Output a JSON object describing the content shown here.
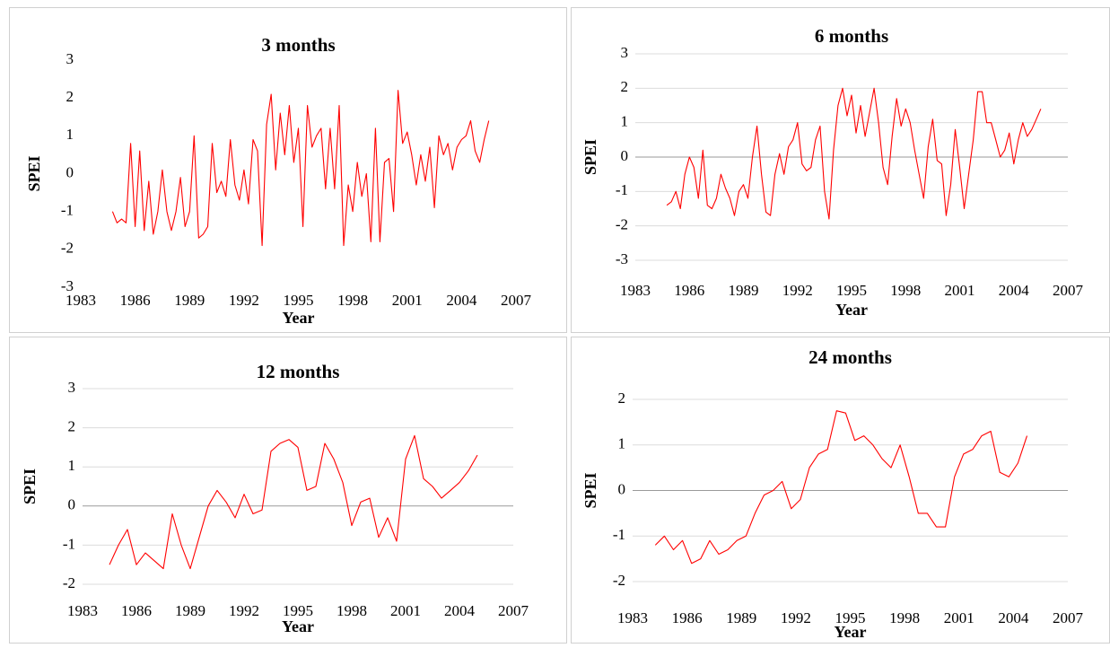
{
  "chart_data": [
    {
      "type": "line",
      "title": "3 months",
      "x_label": "Year",
      "y_label": "SPEI",
      "color": "#ff0000",
      "grid": false,
      "xlim": [
        1983,
        2007
      ],
      "xticks": [
        1983,
        1986,
        1989,
        1992,
        1995,
        1998,
        2001,
        2004,
        2007
      ],
      "ylim": [
        -3,
        3
      ],
      "yticks": [
        -3,
        -2,
        -1,
        0,
        1,
        2,
        3
      ],
      "x": [
        1984.75,
        1985,
        1985.25,
        1985.5,
        1985.75,
        1986,
        1986.25,
        1986.5,
        1986.75,
        1987,
        1987.25,
        1987.5,
        1987.75,
        1988,
        1988.25,
        1988.5,
        1988.75,
        1989,
        1989.25,
        1989.5,
        1989.75,
        1990,
        1990.25,
        1990.5,
        1990.75,
        1991,
        1991.25,
        1991.5,
        1991.75,
        1992,
        1992.25,
        1992.5,
        1992.75,
        1993,
        1993.25,
        1993.5,
        1993.75,
        1994,
        1994.25,
        1994.5,
        1994.75,
        1995,
        1995.25,
        1995.5,
        1995.75,
        1996,
        1996.25,
        1996.5,
        1996.75,
        1997,
        1997.25,
        1997.5,
        1997.75,
        1998,
        1998.25,
        1998.5,
        1998.75,
        1999,
        1999.25,
        1999.5,
        1999.75,
        2000,
        2000.25,
        2000.5,
        2000.75,
        2001,
        2001.25,
        2001.5,
        2001.75,
        2002,
        2002.25,
        2002.5,
        2002.75,
        2003,
        2003.25,
        2003.5,
        2003.75,
        2004,
        2004.25,
        2004.5,
        2004.75,
        2005,
        2005.25,
        2005.5
      ],
      "values": [
        -1.0,
        -1.3,
        -1.2,
        -1.3,
        0.8,
        -1.4,
        0.6,
        -1.5,
        -0.2,
        -1.6,
        -1.0,
        0.1,
        -1.0,
        -1.5,
        -1.0,
        -0.1,
        -1.4,
        -1.0,
        1.0,
        -1.7,
        -1.6,
        -1.4,
        0.8,
        -0.5,
        -0.2,
        -0.6,
        0.9,
        -0.3,
        -0.7,
        0.1,
        -0.8,
        0.9,
        0.6,
        -1.9,
        1.3,
        2.1,
        0.1,
        1.6,
        0.5,
        1.8,
        0.3,
        1.2,
        -1.4,
        1.8,
        0.7,
        1.0,
        1.2,
        -0.4,
        1.2,
        -0.4,
        1.8,
        -1.9,
        -0.3,
        -1.0,
        0.3,
        -0.6,
        0.0,
        -1.8,
        1.2,
        -1.8,
        0.3,
        0.4,
        -1.0,
        2.2,
        0.8,
        1.1,
        0.5,
        -0.3,
        0.5,
        -0.2,
        0.7,
        -0.9,
        1.0,
        0.5,
        0.8,
        0.1,
        0.7,
        0.9,
        1.0,
        1.4,
        0.6,
        0.3,
        0.9,
        1.4
      ]
    },
    {
      "type": "line",
      "title": "6 months",
      "x_label": "Year",
      "y_label": "SPEI",
      "color": "#ff0000",
      "grid": true,
      "xlim": [
        1983,
        2007
      ],
      "xticks": [
        1983,
        1986,
        1989,
        1992,
        1995,
        1998,
        2001,
        2004,
        2007
      ],
      "ylim": [
        -3,
        3
      ],
      "yticks": [
        -3,
        -2,
        -1,
        0,
        1,
        2,
        3
      ],
      "x": [
        1984.75,
        1985,
        1985.25,
        1985.5,
        1985.75,
        1986,
        1986.25,
        1986.5,
        1986.75,
        1987,
        1987.25,
        1987.5,
        1987.75,
        1988,
        1988.25,
        1988.5,
        1988.75,
        1989,
        1989.25,
        1989.5,
        1989.75,
        1990,
        1990.25,
        1990.5,
        1990.75,
        1991,
        1991.25,
        1991.5,
        1991.75,
        1992,
        1992.25,
        1992.5,
        1992.75,
        1993,
        1993.25,
        1993.5,
        1993.75,
        1994,
        1994.25,
        1994.5,
        1994.75,
        1995,
        1995.25,
        1995.5,
        1995.75,
        1996,
        1996.25,
        1996.5,
        1996.75,
        1997,
        1997.25,
        1997.5,
        1997.75,
        1998,
        1998.25,
        1998.5,
        1998.75,
        1999,
        1999.25,
        1999.5,
        1999.75,
        2000,
        2000.25,
        2000.5,
        2000.75,
        2001,
        2001.25,
        2001.5,
        2001.75,
        2002,
        2002.25,
        2002.5,
        2002.75,
        2003,
        2003.25,
        2003.5,
        2003.75,
        2004,
        2004.25,
        2004.5,
        2004.75,
        2005,
        2005.25,
        2005.5
      ],
      "values": [
        -1.4,
        -1.3,
        -1.0,
        -1.5,
        -0.5,
        0.0,
        -0.3,
        -1.2,
        0.2,
        -1.4,
        -1.5,
        -1.2,
        -0.5,
        -0.9,
        -1.2,
        -1.7,
        -1.0,
        -0.8,
        -1.2,
        0.0,
        0.9,
        -0.5,
        -1.6,
        -1.7,
        -0.5,
        0.1,
        -0.5,
        0.3,
        0.5,
        1.0,
        -0.2,
        -0.4,
        -0.3,
        0.5,
        0.9,
        -1.0,
        -1.8,
        0.2,
        1.5,
        2.0,
        1.2,
        1.8,
        0.7,
        1.5,
        0.6,
        1.3,
        2.0,
        1.0,
        -0.3,
        -0.8,
        0.6,
        1.7,
        0.9,
        1.4,
        1.0,
        0.2,
        -0.5,
        -1.2,
        0.3,
        1.1,
        -0.1,
        -0.2,
        -1.7,
        -0.8,
        0.8,
        -0.3,
        -1.5,
        -0.5,
        0.5,
        1.9,
        1.9,
        1.0,
        1.0,
        0.5,
        0.0,
        0.2,
        0.7,
        -0.2,
        0.5,
        1.0,
        0.6,
        0.8,
        1.1,
        1.4
      ]
    },
    {
      "type": "line",
      "title": "12 months",
      "x_label": "Year",
      "y_label": "SPEI",
      "color": "#ff0000",
      "grid": true,
      "xlim": [
        1983,
        2007
      ],
      "xticks": [
        1983,
        1986,
        1989,
        1992,
        1995,
        1998,
        2001,
        2004,
        2007
      ],
      "ylim": [
        -2,
        3
      ],
      "yticks": [
        -2,
        -1,
        0,
        1,
        2,
        3
      ],
      "x": [
        1984.5,
        1985,
        1985.5,
        1986,
        1986.5,
        1987,
        1987.5,
        1988,
        1988.5,
        1989,
        1989.5,
        1990,
        1990.5,
        1991,
        1991.5,
        1992,
        1992.5,
        1993,
        1993.5,
        1994,
        1994.5,
        1995,
        1995.5,
        1996,
        1996.5,
        1997,
        1997.5,
        1998,
        1998.5,
        1999,
        1999.5,
        2000,
        2000.5,
        2001,
        2001.5,
        2002,
        2002.5,
        2003,
        2003.5,
        2004,
        2004.5,
        2005
      ],
      "values": [
        -1.5,
        -1.0,
        -0.6,
        -1.5,
        -1.2,
        -1.4,
        -1.6,
        -0.2,
        -1.0,
        -1.6,
        -0.8,
        0.0,
        0.4,
        0.1,
        -0.3,
        0.3,
        -0.2,
        -0.1,
        1.4,
        1.6,
        1.7,
        1.5,
        0.4,
        0.5,
        1.6,
        1.2,
        0.6,
        -0.5,
        0.1,
        0.2,
        -0.8,
        -0.3,
        -0.9,
        1.2,
        1.8,
        0.7,
        0.5,
        0.2,
        0.4,
        0.6,
        0.9,
        1.3
      ]
    },
    {
      "type": "line",
      "title": "24 months",
      "x_label": "Year",
      "y_label": "SPEI",
      "color": "#ff0000",
      "grid": true,
      "xlim": [
        1983,
        2007
      ],
      "xticks": [
        1983,
        1986,
        1989,
        1992,
        1995,
        1998,
        2001,
        2004,
        2007
      ],
      "ylim": [
        -2,
        2
      ],
      "yticks": [
        -2,
        -1,
        0,
        1,
        2
      ],
      "x": [
        1984.25,
        1984.75,
        1985.25,
        1985.75,
        1986.25,
        1986.75,
        1987.25,
        1987.75,
        1988.25,
        1988.75,
        1989.25,
        1989.75,
        1990.25,
        1990.75,
        1991.25,
        1991.75,
        1992.25,
        1992.75,
        1993.25,
        1993.75,
        1994.25,
        1994.75,
        1995.25,
        1995.75,
        1996.25,
        1996.75,
        1997.25,
        1997.75,
        1998.25,
        1998.75,
        1999.25,
        1999.75,
        2000.25,
        2000.75,
        2001.25,
        2001.75,
        2002.25,
        2002.75,
        2003.25,
        2003.75,
        2004.25,
        2004.75
      ],
      "values": [
        -1.2,
        -1.0,
        -1.3,
        -1.1,
        -1.6,
        -1.5,
        -1.1,
        -1.4,
        -1.3,
        -1.1,
        -1.0,
        -0.5,
        -0.1,
        0.0,
        0.2,
        -0.4,
        -0.2,
        0.5,
        0.8,
        0.9,
        1.75,
        1.7,
        1.1,
        1.2,
        1.0,
        0.7,
        0.5,
        1.0,
        0.3,
        -0.5,
        -0.5,
        -0.8,
        -0.8,
        0.3,
        0.8,
        0.9,
        1.2,
        1.3,
        0.4,
        0.3,
        0.6,
        1.2
      ]
    }
  ]
}
